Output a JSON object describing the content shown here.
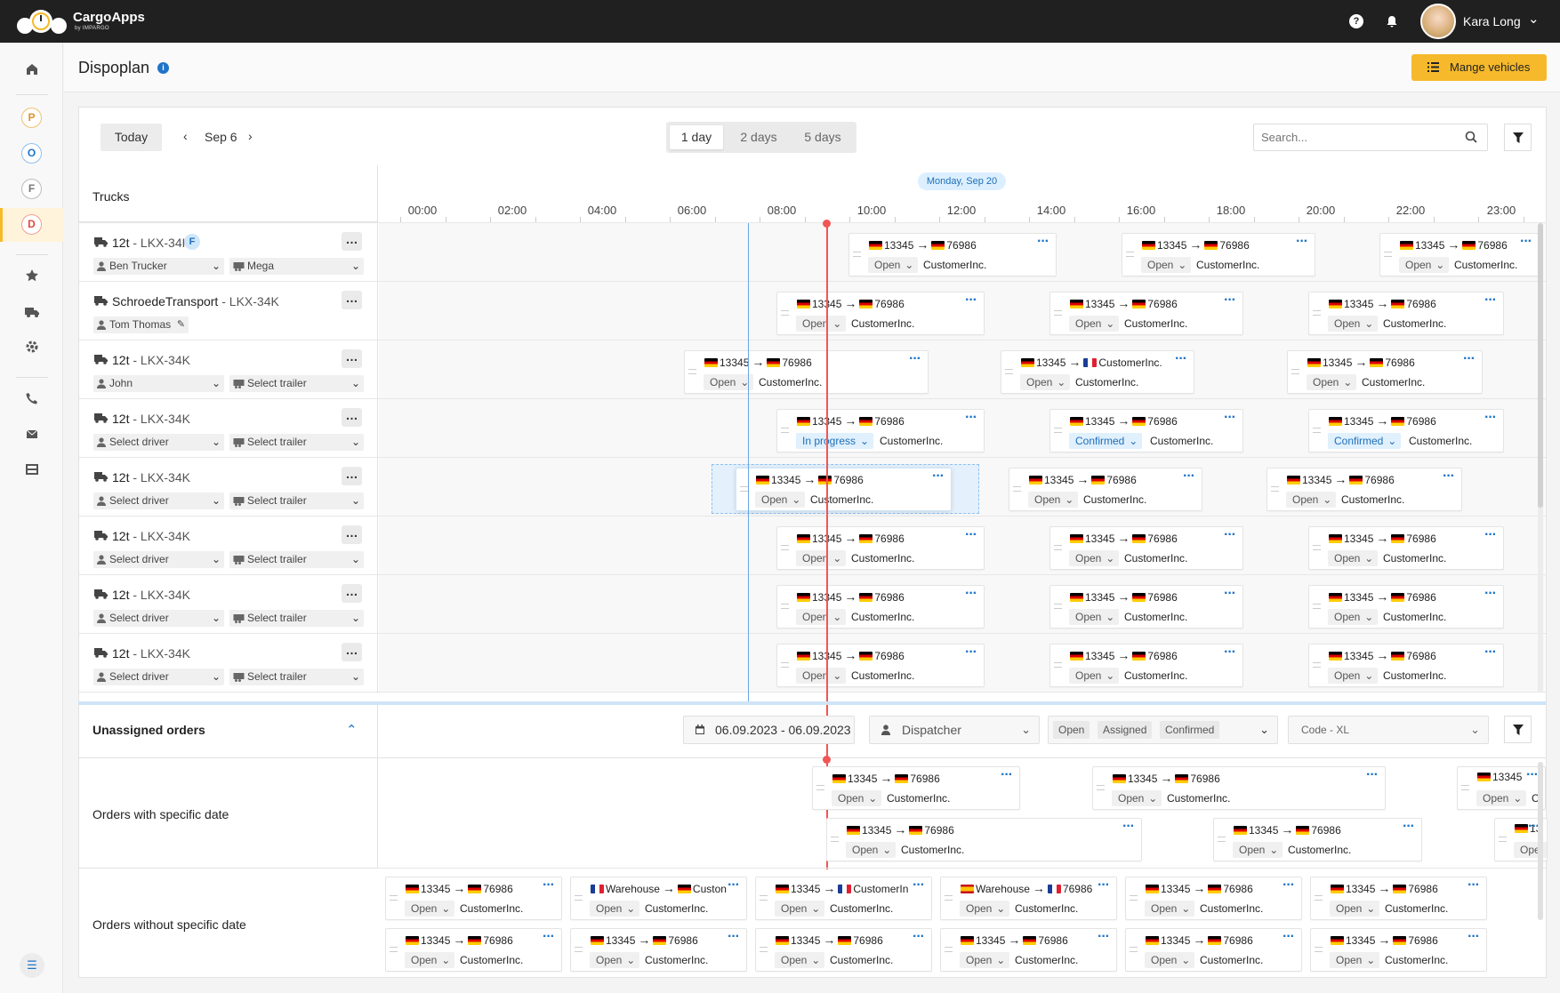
{
  "app": {
    "brand": "CargoApps",
    "brand_sub": "by IMPARGO",
    "user_name": "Kara Long"
  },
  "sidebar": {
    "letters": [
      "P",
      "O",
      "F",
      "D"
    ],
    "icons": [
      "home-icon",
      "star-icon",
      "truck-icon",
      "gear-icon",
      "phone-icon",
      "mail-icon",
      "film-icon",
      "list-icon"
    ]
  },
  "header": {
    "title": "Dispoplan",
    "manage_button": "Mange vehicles"
  },
  "toolbar": {
    "today": "Today",
    "date": "Sep 6",
    "ranges": [
      "1 day",
      "2 days",
      "5 days"
    ],
    "active_range": "1 day",
    "search_placeholder": "Search..."
  },
  "timeline": {
    "trucks_label": "Trucks",
    "day_label": "Monday, Sep 20",
    "hours": [
      "00:00",
      "02:00",
      "04:00",
      "06:00",
      "08:00",
      "10:00",
      "12:00",
      "14:00",
      "16:00",
      "18:00",
      "20:00",
      "22:00",
      "23:00"
    ]
  },
  "trucks": [
    {
      "weight": "12t",
      "plate": "LKX-34K",
      "badge": "F",
      "driver": "Ben Trucker",
      "trailer": "Mega"
    },
    {
      "weight": "SchroedeTransport",
      "plate": "LKX-34K",
      "badge": "",
      "driver": "Tom Thomas",
      "trailer": ""
    },
    {
      "weight": "12t",
      "plate": "LKX-34K",
      "badge": "",
      "driver": "John",
      "trailer": "Select trailer"
    },
    {
      "weight": "12t",
      "plate": "LKX-34K",
      "badge": "",
      "driver": "Select driver",
      "trailer": "Select trailer"
    },
    {
      "weight": "12t",
      "plate": "LKX-34K",
      "badge": "",
      "driver": "Select driver",
      "trailer": "Select trailer"
    },
    {
      "weight": "12t",
      "plate": "LKX-34K",
      "badge": "",
      "driver": "Select driver",
      "trailer": "Select trailer"
    },
    {
      "weight": "12t",
      "plate": "LKX-34K",
      "badge": "",
      "driver": "Select driver",
      "trailer": "Select trailer"
    },
    {
      "weight": "12t",
      "plate": "LKX-34K",
      "badge": "",
      "driver": "Select driver",
      "trailer": "Select trailer"
    }
  ],
  "schedule_cards": [
    [
      {
        "from": "13345",
        "to": "76986",
        "to_flag": "de",
        "status": "Open",
        "customer": "CustomerInc."
      },
      {
        "from": "13345",
        "to": "76986",
        "to_flag": "de",
        "status": "Open",
        "customer": "CustomerInc."
      },
      {
        "from": "13345",
        "to": "76986",
        "to_flag": "de",
        "status": "Open",
        "customer": "CustomerInc."
      }
    ],
    [
      {
        "from": "13345",
        "to": "76986",
        "to_flag": "de",
        "status": "Open",
        "customer": "CustomerInc."
      },
      {
        "from": "13345",
        "to": "76986",
        "to_flag": "de",
        "status": "Open",
        "customer": "CustomerInc."
      },
      {
        "from": "13345",
        "to": "76986",
        "to_flag": "de",
        "status": "Open",
        "customer": "CustomerInc."
      }
    ],
    [
      {
        "from": "13345",
        "to": "76986",
        "to_flag": "de",
        "status": "Open",
        "customer": "CustomerInc."
      },
      {
        "from": "13345",
        "to": "CustomerInc.",
        "to_flag": "fr",
        "status": "Open",
        "customer": "CustomerInc."
      },
      {
        "from": "13345",
        "to": "76986",
        "to_flag": "de",
        "status": "Open",
        "customer": "CustomerInc."
      }
    ],
    [
      {
        "from": "13345",
        "to": "76986",
        "to_flag": "de",
        "status": "In progress",
        "customer": "CustomerInc."
      },
      {
        "from": "13345",
        "to": "76986",
        "to_flag": "de",
        "status": "Confirmed",
        "customer": "CustomerInc."
      },
      {
        "from": "13345",
        "to": "76986",
        "to_flag": "de",
        "status": "Confirmed",
        "customer": "CustomerInc."
      }
    ],
    [
      {
        "from": "13345",
        "to": "76986",
        "to_flag": "de",
        "status": "Open",
        "customer": "CustomerInc."
      },
      {
        "from": "13345",
        "to": "76986",
        "to_flag": "de",
        "status": "Open",
        "customer": "CustomerInc."
      },
      {
        "from": "13345",
        "to": "76986",
        "to_flag": "de",
        "status": "Open",
        "customer": "CustomerInc."
      }
    ],
    [
      {
        "from": "13345",
        "to": "76986",
        "to_flag": "de",
        "status": "Open",
        "customer": "CustomerInc."
      },
      {
        "from": "13345",
        "to": "76986",
        "to_flag": "de",
        "status": "Open",
        "customer": "CustomerInc."
      },
      {
        "from": "13345",
        "to": "76986",
        "to_flag": "de",
        "status": "Open",
        "customer": "CustomerInc."
      }
    ],
    [
      {
        "from": "13345",
        "to": "76986",
        "to_flag": "de",
        "status": "Open",
        "customer": "CustomerInc."
      },
      {
        "from": "13345",
        "to": "76986",
        "to_flag": "de",
        "status": "Open",
        "customer": "CustomerInc."
      },
      {
        "from": "13345",
        "to": "76986",
        "to_flag": "de",
        "status": "Open",
        "customer": "CustomerInc."
      }
    ],
    [
      {
        "from": "13345",
        "to": "76986",
        "to_flag": "de",
        "status": "Open",
        "customer": "CustomerInc."
      },
      {
        "from": "13345",
        "to": "76986",
        "to_flag": "de",
        "status": "Open",
        "customer": "CustomerInc."
      },
      {
        "from": "13345",
        "to": "76986",
        "to_flag": "de",
        "status": "Open",
        "customer": "CustomerInc."
      }
    ]
  ],
  "unassigned": {
    "title": "Unassigned orders",
    "date_range": "06.09.2023 - 06.09.2023",
    "dispatcher": "Dispatcher",
    "status_chips": [
      "Open",
      "Assigned",
      "Confirmed"
    ],
    "code": "Code - XL",
    "with_date_label": "Orders with specific date",
    "without_date_label": "Orders without specific date",
    "with_date_cards": [
      {
        "from": "13345",
        "to": "76986",
        "to_flag": "de",
        "status": "Open",
        "customer": "CustomerInc."
      },
      {
        "from": "13345",
        "to": "76986",
        "to_flag": "de",
        "status": "Open",
        "customer": "CustomerInc."
      },
      {
        "from": "13345",
        "to": "",
        "to_flag": "",
        "status": "Open",
        "customer": "C"
      },
      {
        "from": "13345",
        "to": "76986",
        "to_flag": "de",
        "status": "Open",
        "customer": "CustomerInc."
      },
      {
        "from": "13345",
        "to": "76986",
        "to_flag": "de",
        "status": "Open",
        "customer": "CustomerInc."
      },
      {
        "from": "13",
        "to": "",
        "to_flag": "",
        "status": "Ope",
        "customer": ""
      }
    ],
    "without_date_cards": [
      {
        "from_flag": "de",
        "from": "13345",
        "to": "76986",
        "to_flag": "de",
        "status": "Open",
        "customer": "CustomerInc."
      },
      {
        "from_flag": "fr",
        "from": "Warehouse",
        "to": "Custon",
        "to_flag": "de",
        "status": "Open",
        "customer": "CustomerInc."
      },
      {
        "from_flag": "de",
        "from": "13345",
        "to": "CustomerIn",
        "to_flag": "fr",
        "status": "Open",
        "customer": "CustomerInc."
      },
      {
        "from_flag": "es",
        "from": "Warehouse",
        "to": "76986",
        "to_flag": "fr",
        "status": "Open",
        "customer": "CustomerInc."
      },
      {
        "from_flag": "de",
        "from": "13345",
        "to": "76986",
        "to_flag": "de",
        "status": "Open",
        "customer": "CustomerInc."
      },
      {
        "from_flag": "de",
        "from": "13345",
        "to": "76986",
        "to_flag": "de",
        "status": "Open",
        "customer": "CustomerInc."
      },
      {
        "from_flag": "de",
        "from": "13345",
        "to": "76986",
        "to_flag": "de",
        "status": "Open",
        "customer": "CustomerInc."
      },
      {
        "from_flag": "de",
        "from": "13345",
        "to": "76986",
        "to_flag": "de",
        "status": "Open",
        "customer": "CustomerInc."
      },
      {
        "from_flag": "de",
        "from": "13345",
        "to": "76986",
        "to_flag": "de",
        "status": "Open",
        "customer": "CustomerInc."
      },
      {
        "from_flag": "de",
        "from": "13345",
        "to": "76986",
        "to_flag": "de",
        "status": "Open",
        "customer": "CustomerInc."
      },
      {
        "from_flag": "de",
        "from": "13345",
        "to": "76986",
        "to_flag": "de",
        "status": "Open",
        "customer": "CustomerInc."
      },
      {
        "from_flag": "de",
        "from": "13345",
        "to": "76986",
        "to_flag": "de",
        "status": "Open",
        "customer": "CustomerInc."
      }
    ]
  }
}
